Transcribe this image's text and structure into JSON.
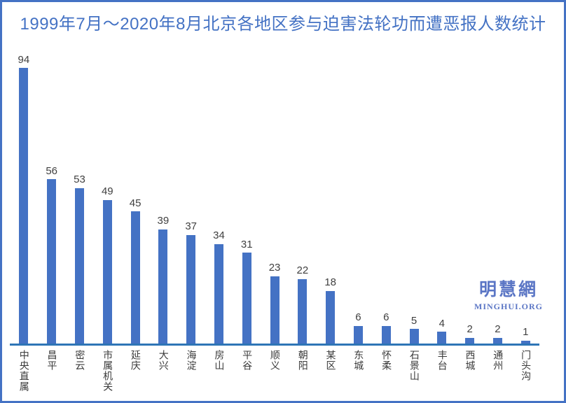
{
  "watermark": {
    "cn": "明慧網",
    "en": "MINGHUI.ORG"
  },
  "colors": {
    "frame_border": "#4472C4",
    "background": "#FFFFFF",
    "title": "#4472C4",
    "bar": "#4472C4",
    "axis": "#2E75B6",
    "value_label": "#404040",
    "category_label": "#3A3A3A",
    "watermark": "#5B76C5"
  },
  "chart_data": {
    "type": "bar",
    "title": "1999年7月～2020年8月北京各地区参与迫害法轮功而遭恶报人数统计",
    "categories": [
      "中央直属",
      "昌平",
      "密云",
      "市属机关",
      "延庆",
      "大兴",
      "海淀",
      "房山",
      "平谷",
      "顺义",
      "朝阳",
      "某区",
      "东城",
      "怀柔",
      "石景山",
      "丰台",
      "西城",
      "通州",
      "门头沟"
    ],
    "values": [
      94,
      56,
      53,
      49,
      45,
      39,
      37,
      34,
      31,
      23,
      22,
      18,
      6,
      6,
      5,
      4,
      2,
      2,
      1
    ],
    "xlabel": "",
    "ylabel": "",
    "ylim": [
      0,
      100
    ],
    "grid": false,
    "legend": false,
    "data_labels": true,
    "label_orientation": "vertical",
    "category_label_position": "bottom"
  }
}
